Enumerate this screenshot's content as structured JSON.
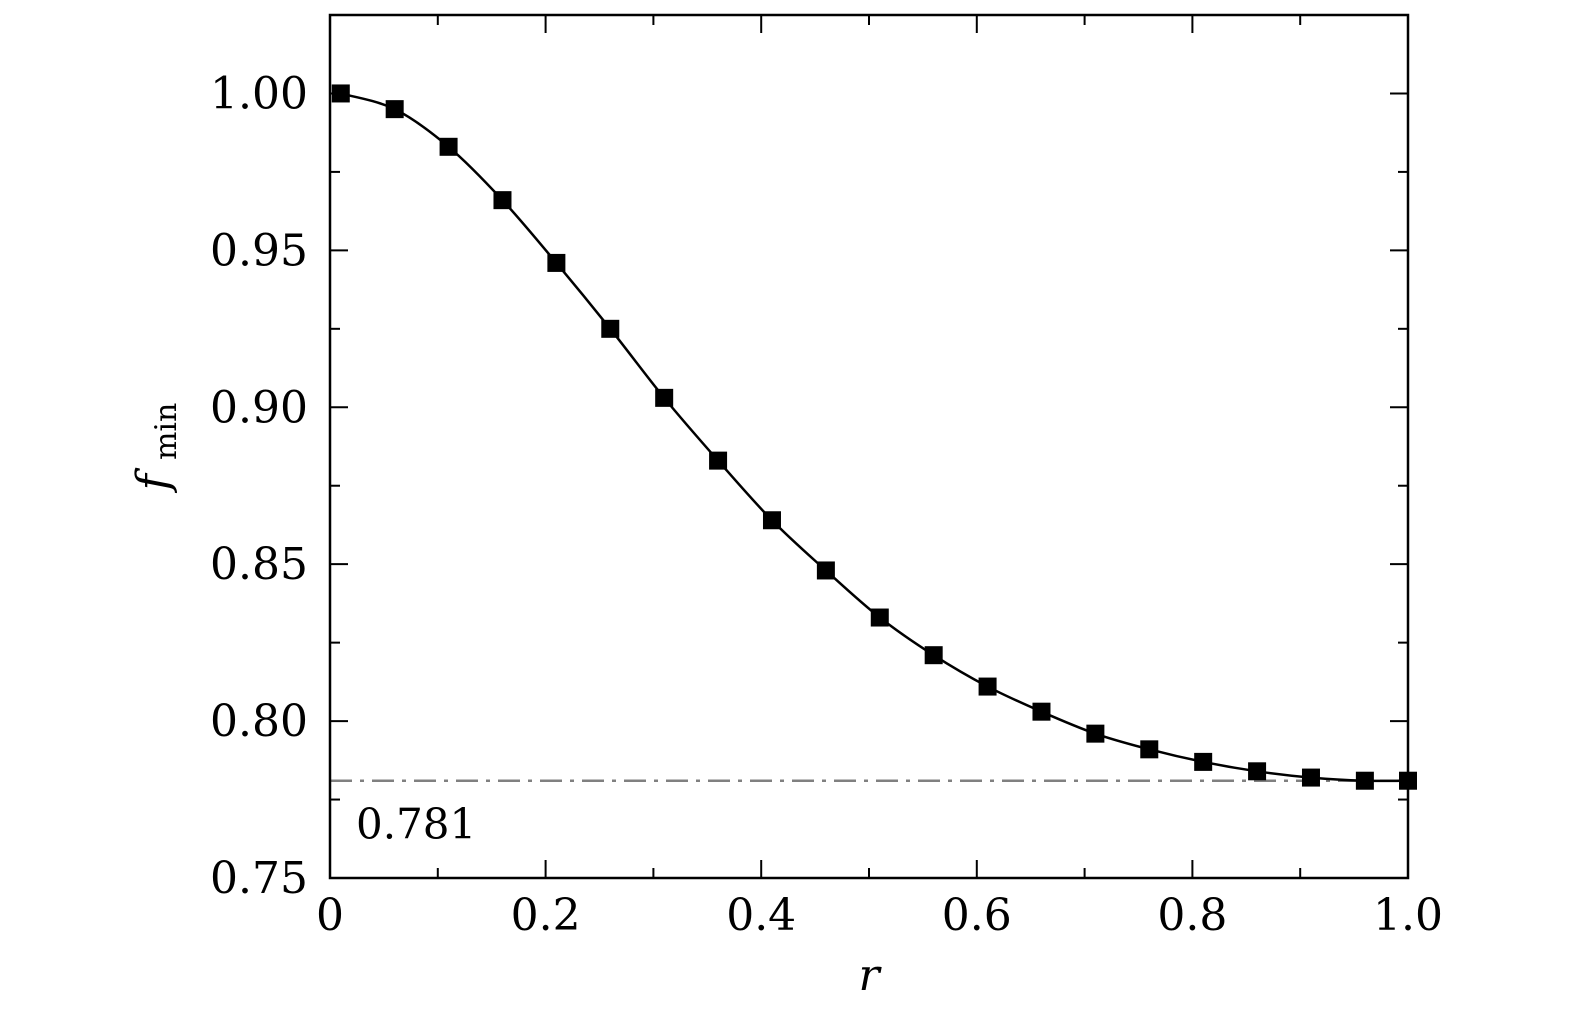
{
  "chart_data": {
    "type": "line",
    "xlabel": "r",
    "ylabel": {
      "main": "f",
      "sub": "min"
    },
    "xlim": [
      0,
      1.0
    ],
    "ylim": [
      0.75,
      1.025
    ],
    "x_ticks": [
      0,
      0.2,
      0.4,
      0.6,
      0.8,
      1.0
    ],
    "x_tick_labels": [
      "0",
      "0.2",
      "0.4",
      "0.6",
      "0.8",
      "1.0"
    ],
    "x_minor_ticks": [
      0.1,
      0.3,
      0.5,
      0.7,
      0.9
    ],
    "y_ticks": [
      0.75,
      0.8,
      0.85,
      0.9,
      0.95,
      1.0
    ],
    "y_tick_labels": [
      "0.75",
      "0.80",
      "0.85",
      "0.90",
      "0.95",
      "1.00"
    ],
    "y_minor_ticks": [
      0.775,
      0.825,
      0.875,
      0.925,
      0.975
    ],
    "grid": false,
    "legend": "none",
    "series": [
      {
        "x": [
          0.01,
          0.06,
          0.11,
          0.16,
          0.21,
          0.26,
          0.31,
          0.36,
          0.41,
          0.46,
          0.51,
          0.56,
          0.61,
          0.66,
          0.71,
          0.76,
          0.81,
          0.86,
          0.91,
          0.96,
          1.0
        ],
        "y": [
          1.0,
          0.995,
          0.983,
          0.966,
          0.946,
          0.925,
          0.903,
          0.883,
          0.864,
          0.848,
          0.833,
          0.821,
          0.811,
          0.803,
          0.796,
          0.791,
          0.787,
          0.784,
          0.782,
          0.781,
          0.781
        ],
        "color": "#000000",
        "marker": "square"
      }
    ],
    "reference_line": {
      "y": 0.781,
      "style": "dash-dot",
      "color": "#808080"
    },
    "annotations": [
      {
        "text": "0.781"
      }
    ]
  }
}
